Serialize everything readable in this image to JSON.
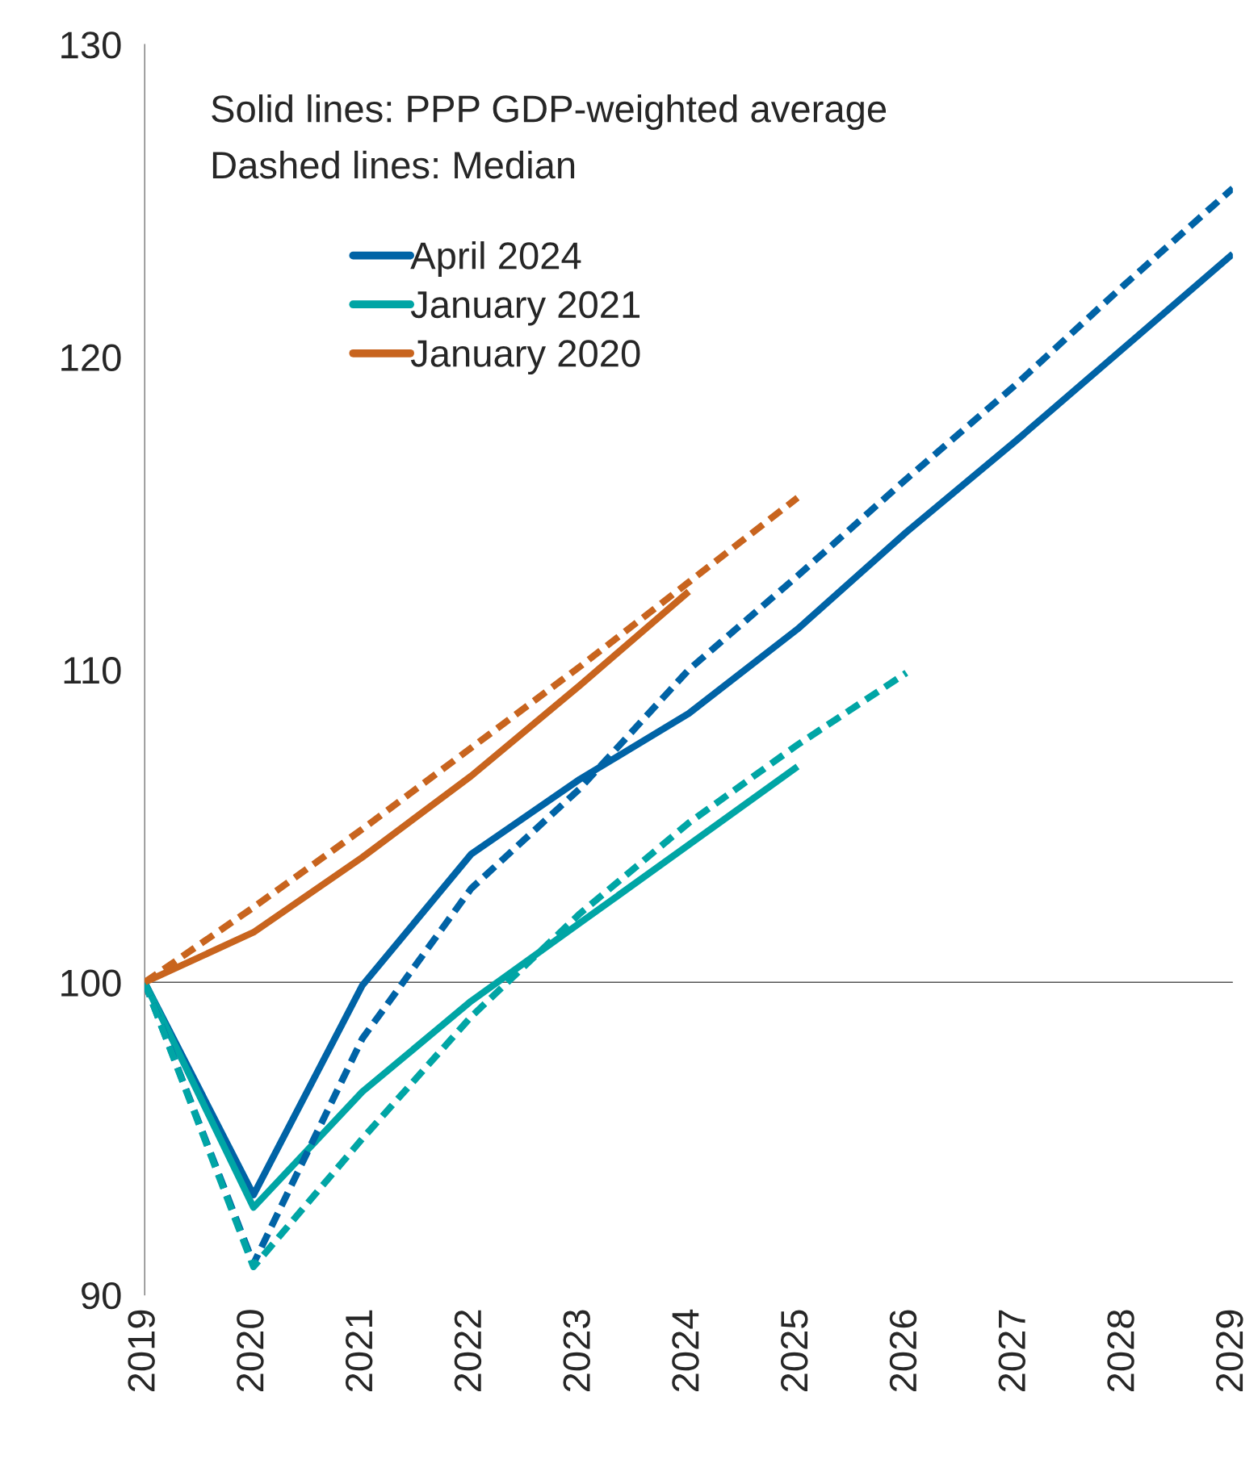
{
  "chart_data": {
    "type": "line",
    "annotations": [
      "Solid lines: PPP GDP-weighted average",
      "Dashed lines: Median"
    ],
    "x": [
      2019,
      2020,
      2021,
      2022,
      2023,
      2024,
      2025,
      2026,
      2027,
      2028,
      2029
    ],
    "xlim": [
      2019,
      2029
    ],
    "xticks": [
      2019,
      2020,
      2021,
      2022,
      2023,
      2024,
      2025,
      2026,
      2027,
      2028,
      2029
    ],
    "ylim": [
      90,
      130
    ],
    "yticks": [
      90,
      100,
      110,
      120,
      130
    ],
    "grid": false,
    "legend": "top left",
    "ref_lines": [
      {
        "axis": "y",
        "value": 100,
        "color": "#555555"
      }
    ],
    "series": [
      {
        "name": "April 2024",
        "color": "#0063a6",
        "line_style": "solid",
        "values": [
          100,
          93.2,
          99.9,
          104.1,
          106.5,
          108.6,
          111.3,
          114.4,
          117.3,
          120.3,
          123.3
        ]
      },
      {
        "name": "January 2021",
        "color": "#00a5a5",
        "line_style": "solid",
        "values": [
          100,
          92.8,
          96.5,
          99.4,
          101.9,
          104.4,
          106.9,
          null,
          null,
          null,
          null
        ]
      },
      {
        "name": "January 2020",
        "color": "#c8641e",
        "line_style": "solid",
        "values": [
          100,
          101.6,
          104.0,
          106.6,
          109.5,
          112.5,
          null,
          null,
          null,
          null,
          null
        ]
      },
      {
        "color": "#0063a6",
        "line_style": "dashed",
        "values": [
          100,
          91.0,
          98.2,
          103.0,
          106.2,
          110.0,
          113.0,
          116.1,
          119.1,
          122.3,
          125.4
        ]
      },
      {
        "color": "#00a5a5",
        "line_style": "dashed",
        "values": [
          100,
          90.9,
          95.0,
          98.9,
          102.2,
          105.1,
          107.6,
          109.9,
          null,
          null,
          null
        ]
      },
      {
        "color": "#c8641e",
        "line_style": "dashed",
        "values": [
          100,
          102.4,
          104.9,
          107.5,
          110.1,
          112.8,
          115.5,
          null,
          null,
          null,
          null
        ]
      }
    ]
  }
}
